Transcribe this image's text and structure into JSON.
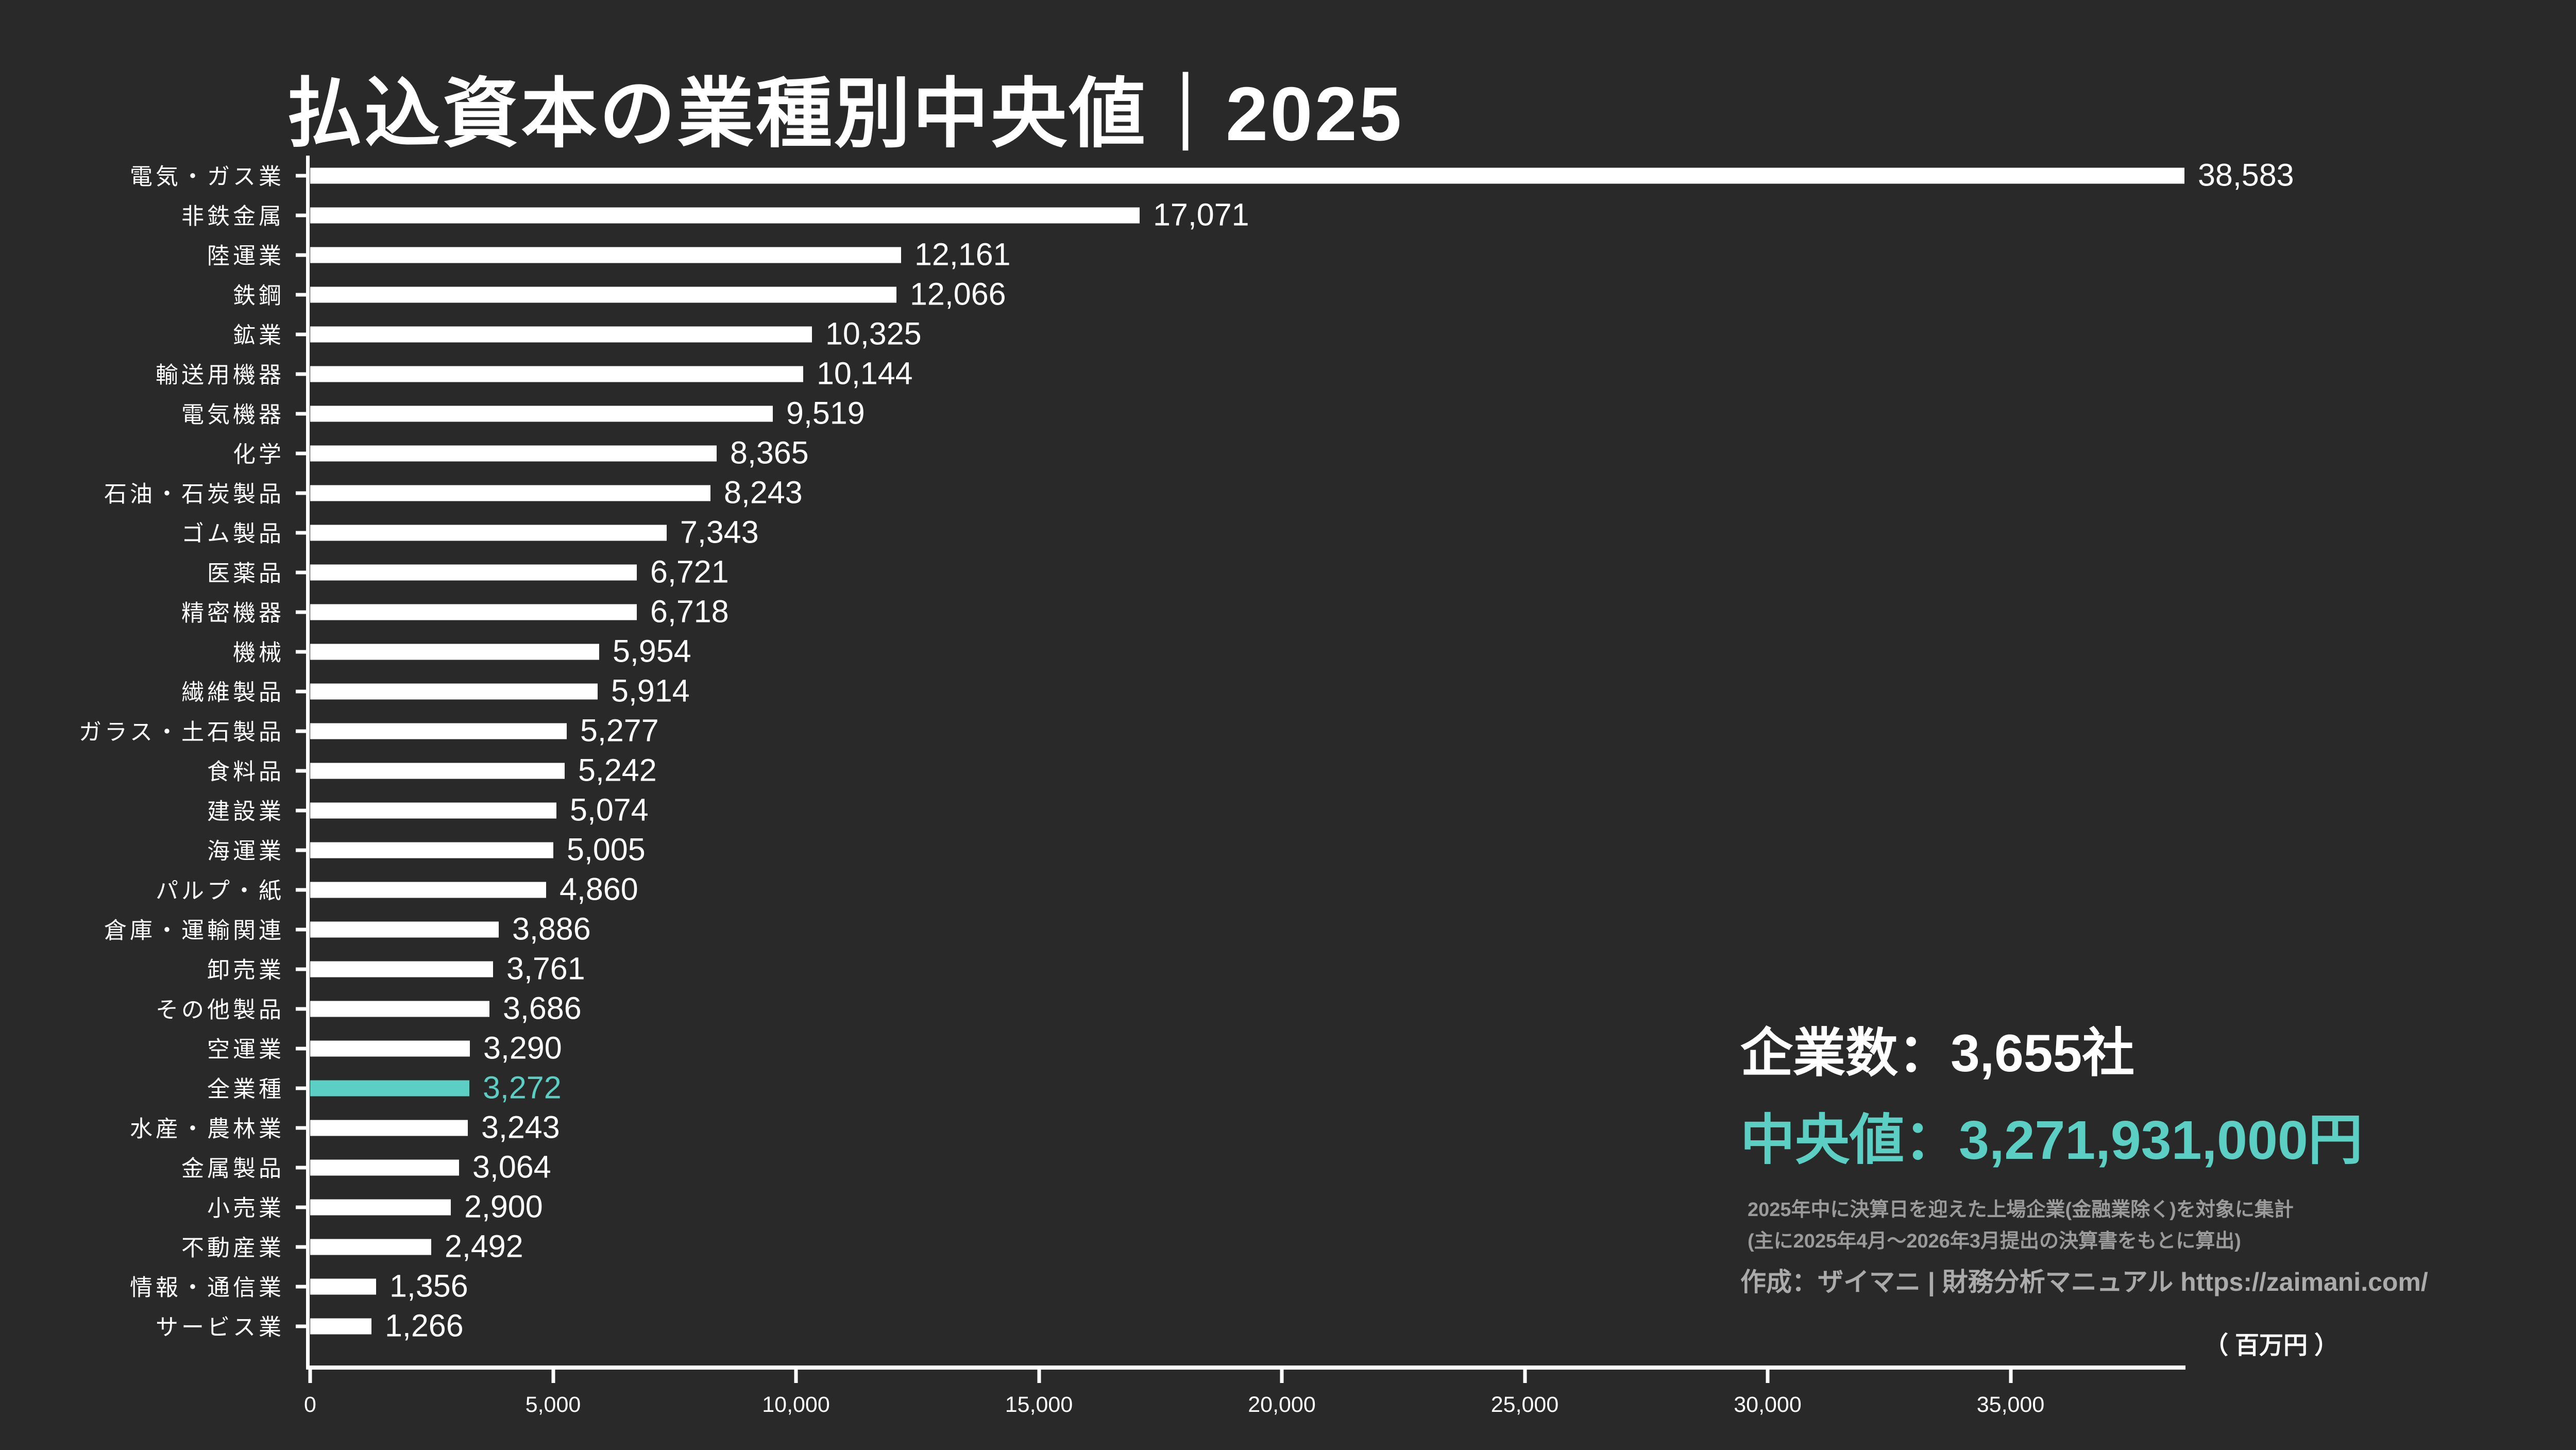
{
  "page": {
    "background_color": "#292929",
    "title": "払込資本の業種別中央値｜2025"
  },
  "colors": {
    "bar_default": "#ffffff",
    "bar_highlight": "#5bcfc4",
    "text_primary": "#ffffff",
    "text_note": "#9b9b9b",
    "text_credit": "#ababab",
    "axis": "#ffffff"
  },
  "chart_data": {
    "type": "bar",
    "orientation": "horizontal",
    "title": "払込資本の業種別中央値｜2025",
    "xlabel": "百万円",
    "unit_label": "（ 百万円 ）",
    "xlim": [
      0,
      38583
    ],
    "grid": false,
    "legend": false,
    "x_ticks": [
      {
        "value": 0,
        "label": "0"
      },
      {
        "value": 5000,
        "label": "5,000"
      },
      {
        "value": 10000,
        "label": "10,000"
      },
      {
        "value": 15000,
        "label": "15,000"
      },
      {
        "value": 20000,
        "label": "20,000"
      },
      {
        "value": 25000,
        "label": "25,000"
      },
      {
        "value": 30000,
        "label": "30,000"
      },
      {
        "value": 35000,
        "label": "35,000"
      }
    ],
    "highlight_category": "全業種",
    "highlight_index": 23,
    "categories": [
      "電気・ガス業",
      "非鉄金属",
      "陸運業",
      "鉄鋼",
      "鉱業",
      "輸送用機器",
      "電気機器",
      "化学",
      "石油・石炭製品",
      "ゴム製品",
      "医薬品",
      "精密機器",
      "機械",
      "繊維製品",
      "ガラス・土石製品",
      "食料品",
      "建設業",
      "海運業",
      "パルプ・紙",
      "倉庫・運輸関連",
      "卸売業",
      "その他製品",
      "空運業",
      "全業種",
      "水産・農林業",
      "金属製品",
      "小売業",
      "不動産業",
      "情報・通信業",
      "サービス業"
    ],
    "values": [
      38583,
      17071,
      12161,
      12066,
      10325,
      10144,
      9519,
      8365,
      8243,
      7343,
      6721,
      6718,
      5954,
      5914,
      5277,
      5242,
      5074,
      5005,
      4860,
      3886,
      3761,
      3686,
      3290,
      3272,
      3243,
      3064,
      2900,
      2492,
      1356,
      1266
    ]
  },
  "annotations": {
    "companies_line": "企業数：3,655社",
    "median_line": "中央値：3,271,931,000円",
    "note_line1": "2025年中に決算日を迎えた上場企業(金融業除く)を対象に集計",
    "note_line2": "(主に2025年4月〜2026年3月提出の決算書をもとに算出)",
    "credit_line": "作成：ザイマニ | 財務分析マニュアル https://zaimani.com/"
  }
}
